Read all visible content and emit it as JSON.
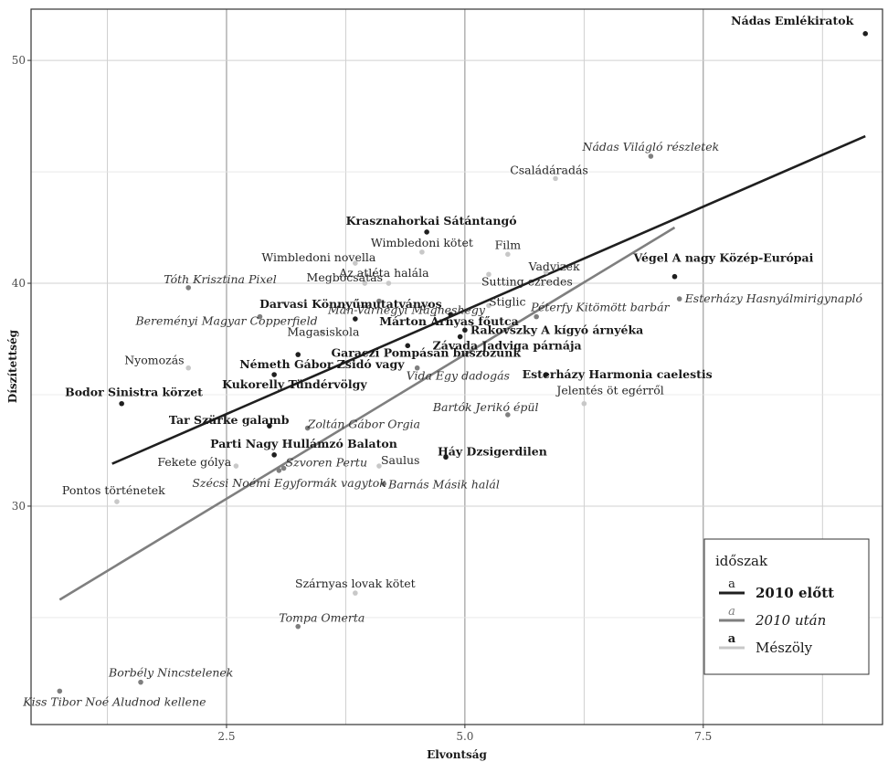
{
  "chart_data": {
    "type": "scatter",
    "xlabel": "Elvontság",
    "ylabel": "Díszítettség",
    "xlim": [
      0.45,
      9.38
    ],
    "ylim": [
      20.2,
      52.3
    ],
    "x_ticks": [
      2.5,
      5.0,
      7.5
    ],
    "x_tick_labels": [
      "2.5",
      "5.0",
      "7.5"
    ],
    "y_ticks": [
      30,
      40,
      50
    ],
    "y_tick_labels": [
      "30",
      "40",
      "50"
    ],
    "grid": true,
    "legend": {
      "title": "időszak",
      "position": "bottom-right",
      "key_glyph": "a",
      "entries": [
        {
          "group": "elott",
          "label": "2010 előtt"
        },
        {
          "group": "utan",
          "label": "2010 után"
        },
        {
          "group": "meszoly",
          "label": "Mészöly"
        }
      ]
    },
    "colors": {
      "elott": "#1f1f1f",
      "utan": "#7f7f7f",
      "meszoly": "#c8c8c8"
    },
    "trend_lines": [
      {
        "group": "elott",
        "x": [
          1.3,
          9.2
        ],
        "y": [
          31.9,
          46.6
        ]
      },
      {
        "group": "utan",
        "x": [
          0.75,
          7.2
        ],
        "y": [
          25.8,
          42.5
        ]
      }
    ],
    "points": [
      {
        "label": "Nádas Emlékiratok",
        "group": "elott",
        "x": 9.2,
        "y": 51.2
      },
      {
        "label": "Krasznahorkai Sátántangó",
        "group": "elott",
        "x": 4.6,
        "y": 42.3
      },
      {
        "label": "Végel A nagy Közép-Európai",
        "group": "elott",
        "x": 7.2,
        "y": 40.3
      },
      {
        "label": "Darvasi Könnyűmutatványos",
        "group": "elott",
        "x": 3.85,
        "y": 38.4
      },
      {
        "label": "Márton Árnyas főutca",
        "group": "elott",
        "x": 4.85,
        "y": 38.6
      },
      {
        "label": "Rakovszky A kígyó árnyéka",
        "group": "elott",
        "x": 5.0,
        "y": 37.9
      },
      {
        "label": "Závada Jadviga párnája",
        "group": "elott",
        "x": 4.95,
        "y": 37.6
      },
      {
        "label": "Garaczi Pompásan buszozunk",
        "group": "elott",
        "x": 4.4,
        "y": 37.2
      },
      {
        "label": "Németh Gábor Zsidó vagy",
        "group": "elott",
        "x": 3.25,
        "y": 36.8
      },
      {
        "label": "Kukorelly Tündérvölgy",
        "group": "elott",
        "x": 3.0,
        "y": 35.9
      },
      {
        "label": "Esterházy Harmonia caelestis",
        "group": "elott",
        "x": 5.85,
        "y": 35.9
      },
      {
        "label": "Bodor Sinistra körzet",
        "group": "elott",
        "x": 1.4,
        "y": 34.6
      },
      {
        "label": "Tar Szürke galamb",
        "group": "elott",
        "x": 2.95,
        "y": 33.6
      },
      {
        "label": "Parti Nagy Hullámzó Balaton",
        "group": "elott",
        "x": 3.0,
        "y": 32.3
      },
      {
        "label": "Háy Dzsigerdilen",
        "group": "elott",
        "x": 4.8,
        "y": 32.2
      },
      {
        "label": "Nádas Világló részletek",
        "group": "utan",
        "x": 6.95,
        "y": 45.7
      },
      {
        "label": "Esterházy Hasnyálmirigynapló",
        "group": "utan",
        "x": 7.25,
        "y": 39.3
      },
      {
        "label": "Tóth Krisztina Pixel",
        "group": "utan",
        "x": 2.1,
        "y": 39.8
      },
      {
        "label": "Mán-Várhegyi Mágneshegy",
        "group": "utan",
        "x": 4.1,
        "y": 39.2
      },
      {
        "label": "Bereményi Magyar Copperfield",
        "group": "utan",
        "x": 2.85,
        "y": 38.5
      },
      {
        "label": "Péterfy Kitömött barbár",
        "group": "utan",
        "x": 5.75,
        "y": 38.5
      },
      {
        "label": "Vida Egy dadogás",
        "group": "utan",
        "x": 4.5,
        "y": 36.2
      },
      {
        "label": "Bartók Jerikó épül",
        "group": "utan",
        "x": 5.45,
        "y": 34.1
      },
      {
        "label": "Zoltán Gábor Orgia",
        "group": "utan",
        "x": 3.35,
        "y": 33.5
      },
      {
        "label": "Szvoren Pertu",
        "group": "utan",
        "x": 3.1,
        "y": 31.7
      },
      {
        "label": "Szécsi Noémi Egyformák vagytok",
        "group": "utan",
        "x": 3.05,
        "y": 31.6
      },
      {
        "label": "Barnás Másik halál",
        "group": "utan",
        "x": 4.15,
        "y": 31.0
      },
      {
        "label": "Tompa Omerta",
        "group": "utan",
        "x": 3.25,
        "y": 24.6
      },
      {
        "label": "Borbély Nincstelenek",
        "group": "utan",
        "x": 1.6,
        "y": 22.1
      },
      {
        "label": "Kiss Tibor Noé Aludnod kellene",
        "group": "utan",
        "x": 0.75,
        "y": 21.7
      },
      {
        "label": "Családáradás",
        "group": "meszoly",
        "x": 5.95,
        "y": 44.7
      },
      {
        "label": "Wimbledoni kötet",
        "group": "meszoly",
        "x": 4.55,
        "y": 41.4
      },
      {
        "label": "Film",
        "group": "meszoly",
        "x": 5.45,
        "y": 41.3
      },
      {
        "label": "Wimbledoni novella",
        "group": "meszoly",
        "x": 3.85,
        "y": 40.9
      },
      {
        "label": "Vadvizek",
        "group": "meszoly",
        "x": 5.85,
        "y": 40.5
      },
      {
        "label": "Az atléta halála",
        "group": "meszoly",
        "x": 4.2,
        "y": 40.0
      },
      {
        "label": "Megbocsátás",
        "group": "meszoly",
        "x": 3.95,
        "y": 40.0
      },
      {
        "label": "Sutting ezredes",
        "group": "meszoly",
        "x": 5.25,
        "y": 40.4
      },
      {
        "label": "Stiglic",
        "group": "meszoly",
        "x": 5.25,
        "y": 39.0
      },
      {
        "label": "Magasiskola",
        "group": "meszoly",
        "x": 3.5,
        "y": 37.8
      },
      {
        "label": "Nyomozás",
        "group": "meszoly",
        "x": 2.1,
        "y": 36.2
      },
      {
        "label": "Jelentés öt egérről",
        "group": "meszoly",
        "x": 6.25,
        "y": 34.6
      },
      {
        "label": "Fekete gólya",
        "group": "meszoly",
        "x": 2.6,
        "y": 31.8
      },
      {
        "label": "Saulus",
        "group": "meszoly",
        "x": 4.1,
        "y": 31.8
      },
      {
        "label": "Pontos történetek",
        "group": "meszoly",
        "x": 1.35,
        "y": 30.2
      },
      {
        "label": "Szárnyas lovak kötet",
        "group": "meszoly",
        "x": 3.85,
        "y": 26.1
      }
    ]
  }
}
